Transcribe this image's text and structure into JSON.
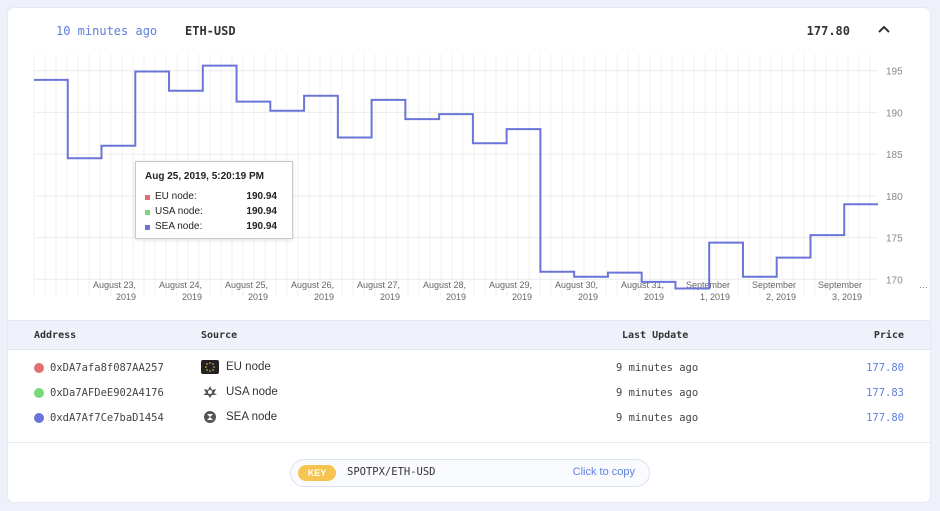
{
  "header": {
    "updated": "10 minutes ago",
    "pair": "ETH-USD",
    "price": "177.80",
    "collapse_icon": "chevron-up-icon"
  },
  "chart_data": {
    "type": "line",
    "step": true,
    "x_tick_labels": [
      [
        "August 23,",
        "2019"
      ],
      [
        "August 24,",
        "2019"
      ],
      [
        "August 25,",
        "2019"
      ],
      [
        "August 26,",
        "2019"
      ],
      [
        "August 27,",
        "2019"
      ],
      [
        "August 28,",
        "2019"
      ],
      [
        "August 29,",
        "2019"
      ],
      [
        "August 30,",
        "2019"
      ],
      [
        "August 31,",
        "2019"
      ],
      [
        "September",
        "1, 2019"
      ],
      [
        "September",
        "2, 2019"
      ],
      [
        "September",
        "3, 2019"
      ],
      [
        "…",
        ""
      ]
    ],
    "y_ticks": [
      170,
      175,
      180,
      185,
      190,
      195
    ],
    "ylim": [
      168,
      197
    ],
    "y_axis_position": "right",
    "grid": true,
    "series": [
      {
        "color": "#6b75d9",
        "values": [
          193.9,
          184.5,
          186.0,
          194.9,
          192.6,
          195.6,
          191.3,
          190.2,
          192.0,
          187.0,
          191.5,
          189.2,
          189.8,
          186.3,
          188.0,
          170.9,
          170.3,
          170.8,
          169.7,
          168.9,
          174.4,
          170.3,
          172.6,
          175.3,
          179.0,
          179.0
        ]
      }
    ],
    "tooltip": {
      "date": "Aug 25, 2019, 5:20:19 PM",
      "rows": [
        {
          "name": "EU node:",
          "value": "190.94",
          "color": "#e07070"
        },
        {
          "name": "USA node:",
          "value": "190.94",
          "color": "#79d97a"
        },
        {
          "name": "SEA node:",
          "value": "190.94",
          "color": "#6b75d9"
        }
      ]
    }
  },
  "table": {
    "headers": {
      "address": "Address",
      "source": "Source",
      "last_update": "Last Update",
      "price": "Price"
    },
    "rows": [
      {
        "dot_color": "#e07070",
        "address": "0xDA7afa8f087AA257",
        "source": "EU node",
        "icon": "eu-flag-icon",
        "updated": "9 minutes ago",
        "price": "177.80"
      },
      {
        "dot_color": "#79d97a",
        "address": "0xDa7AFDeE902A4176",
        "source": "USA node",
        "icon": "us-seal-icon",
        "updated": "9 minutes ago",
        "price": "177.83"
      },
      {
        "dot_color": "#6b75d9",
        "address": "0xdA7Af7Ce7baD1454",
        "source": "SEA node",
        "icon": "sea-emblem-icon",
        "updated": "9 minutes ago",
        "price": "177.80"
      }
    ]
  },
  "key": {
    "badge": "KEY",
    "value": "SPOTPX/ETH-USD",
    "copy_label": "Click to copy"
  }
}
